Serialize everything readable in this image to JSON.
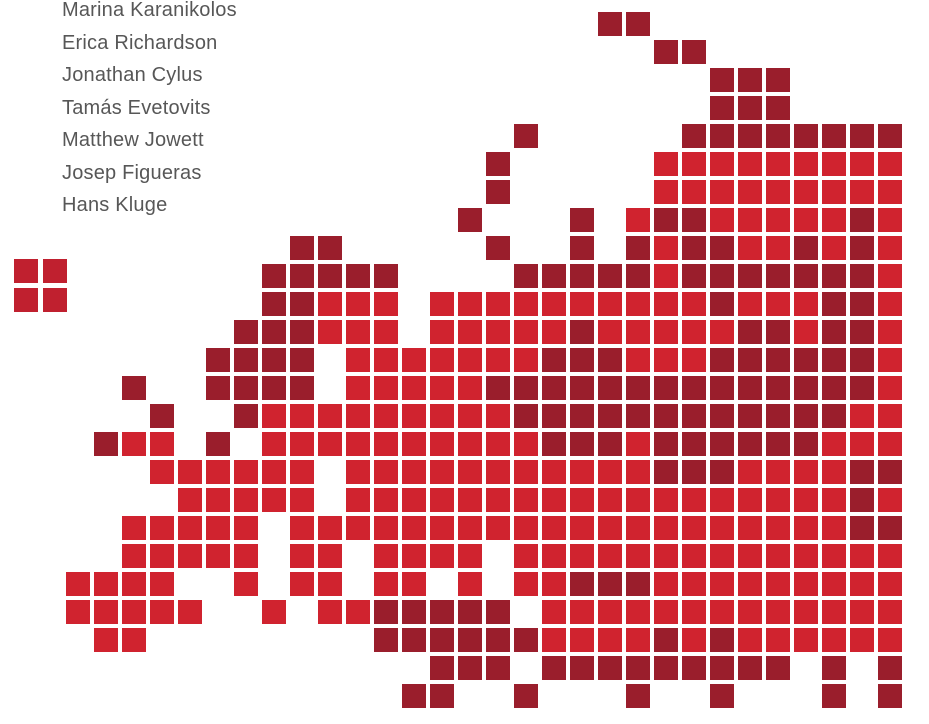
{
  "authors": [
    "Marina Karanikolos",
    "Erica Richardson",
    "Jonathan Cylus",
    "Tamás Evetovits",
    "Matthew Jowett",
    "Josep Figueras",
    "Hans Kluge"
  ],
  "colors": {
    "tile_main": "#d0232f",
    "tile_dark": "#9a1e2c",
    "logo": "#c0202f",
    "text": "#575757",
    "background": "#ffffff"
  }
}
